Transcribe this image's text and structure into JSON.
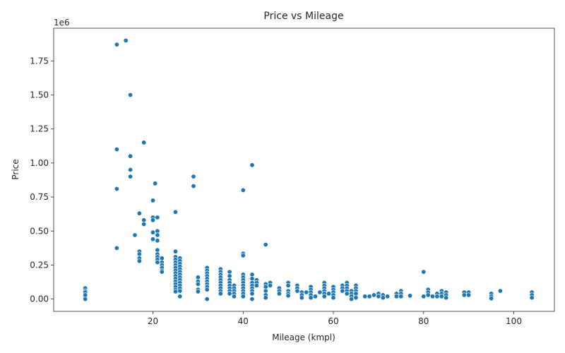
{
  "chart_data": {
    "type": "scatter",
    "title": "Price vs Mileage",
    "xlabel": "Mileage (kmpl)",
    "ylabel": "Price",
    "y_offset_text": "1e6",
    "xlim": [
      -2,
      109
    ],
    "ylim": [
      -90000,
      1990000
    ],
    "x_ticks": [
      20,
      40,
      60,
      80,
      100
    ],
    "x_tick_labels": [
      "20",
      "40",
      "60",
      "80",
      "100"
    ],
    "y_ticks": [
      0,
      250000,
      500000,
      750000,
      1000000,
      1250000,
      1500000,
      1750000
    ],
    "y_tick_labels": [
      "0.00",
      "0.25",
      "0.50",
      "0.75",
      "1.00",
      "1.25",
      "1.50",
      "1.75"
    ],
    "grid": false,
    "legend": "none",
    "point_color": "#1f77b4",
    "points": [
      [
        5,
        80000
      ],
      [
        5,
        60000
      ],
      [
        5,
        40000
      ],
      [
        5,
        25000
      ],
      [
        5,
        10000
      ],
      [
        5,
        0
      ],
      [
        5,
        50000
      ],
      [
        5,
        30000
      ],
      [
        12,
        1870000
      ],
      [
        14,
        1900000
      ],
      [
        15,
        1500000
      ],
      [
        12,
        1100000
      ],
      [
        15,
        1050000
      ],
      [
        18,
        1150000
      ],
      [
        15,
        950000
      ],
      [
        15,
        900000
      ],
      [
        20.5,
        850000
      ],
      [
        12,
        810000
      ],
      [
        20,
        725000
      ],
      [
        17,
        630000
      ],
      [
        18,
        580000
      ],
      [
        18,
        550000
      ],
      [
        20,
        600000
      ],
      [
        20,
        580000
      ],
      [
        21,
        600000
      ],
      [
        16,
        470000
      ],
      [
        12,
        375000
      ],
      [
        20,
        490000
      ],
      [
        21,
        500000
      ],
      [
        21,
        470000
      ],
      [
        20,
        440000
      ],
      [
        21,
        430000
      ],
      [
        17,
        350000
      ],
      [
        17,
        330000
      ],
      [
        17,
        300000
      ],
      [
        17,
        280000
      ],
      [
        21,
        360000
      ],
      [
        21,
        330000
      ],
      [
        21,
        310000
      ],
      [
        21,
        290000
      ],
      [
        21,
        270000
      ],
      [
        22,
        300000
      ],
      [
        22,
        270000
      ],
      [
        22,
        250000
      ],
      [
        22,
        230000
      ],
      [
        22,
        210000
      ],
      [
        22,
        200000
      ],
      [
        25,
        640000
      ],
      [
        25,
        350000
      ],
      [
        25,
        310000
      ],
      [
        25,
        290000
      ],
      [
        25,
        270000
      ],
      [
        25,
        250000
      ],
      [
        25,
        230000
      ],
      [
        25,
        210000
      ],
      [
        25,
        190000
      ],
      [
        25,
        170000
      ],
      [
        25,
        150000
      ],
      [
        25,
        130000
      ],
      [
        25,
        110000
      ],
      [
        25,
        90000
      ],
      [
        25,
        70000
      ],
      [
        25,
        55000
      ],
      [
        26,
        300000
      ],
      [
        26,
        280000
      ],
      [
        26,
        260000
      ],
      [
        26,
        240000
      ],
      [
        26,
        220000
      ],
      [
        26,
        200000
      ],
      [
        26,
        180000
      ],
      [
        26,
        160000
      ],
      [
        26,
        140000
      ],
      [
        26,
        120000
      ],
      [
        26,
        100000
      ],
      [
        26,
        80000
      ],
      [
        26,
        60000
      ],
      [
        26,
        20000
      ],
      [
        29,
        900000
      ],
      [
        29,
        830000
      ],
      [
        30,
        160000
      ],
      [
        30,
        130000
      ],
      [
        30,
        110000
      ],
      [
        30,
        70000
      ],
      [
        30,
        55000
      ],
      [
        32,
        230000
      ],
      [
        32,
        210000
      ],
      [
        32,
        190000
      ],
      [
        32,
        170000
      ],
      [
        32,
        150000
      ],
      [
        32,
        130000
      ],
      [
        32,
        110000
      ],
      [
        32,
        90000
      ],
      [
        32,
        70000
      ],
      [
        32,
        0
      ],
      [
        35,
        220000
      ],
      [
        35,
        200000
      ],
      [
        35,
        180000
      ],
      [
        35,
        160000
      ],
      [
        35,
        140000
      ],
      [
        35,
        120000
      ],
      [
        35,
        100000
      ],
      [
        35,
        80000
      ],
      [
        35,
        60000
      ],
      [
        35,
        40000
      ],
      [
        37,
        200000
      ],
      [
        37,
        170000
      ],
      [
        37,
        140000
      ],
      [
        37,
        120000
      ],
      [
        37,
        100000
      ],
      [
        37,
        80000
      ],
      [
        37,
        60000
      ],
      [
        37,
        40000
      ],
      [
        38,
        100000
      ],
      [
        38,
        80000
      ],
      [
        38,
        60000
      ],
      [
        38,
        40000
      ],
      [
        38,
        20000
      ],
      [
        40,
        800000
      ],
      [
        40,
        335000
      ],
      [
        40,
        320000
      ],
      [
        40,
        180000
      ],
      [
        40,
        160000
      ],
      [
        40,
        140000
      ],
      [
        40,
        120000
      ],
      [
        40,
        100000
      ],
      [
        40,
        80000
      ],
      [
        40,
        60000
      ],
      [
        40,
        40000
      ],
      [
        40,
        20000
      ],
      [
        42,
        985000
      ],
      [
        42,
        180000
      ],
      [
        42,
        150000
      ],
      [
        42,
        120000
      ],
      [
        42,
        100000
      ],
      [
        42,
        80000
      ],
      [
        42,
        60000
      ],
      [
        42,
        40000
      ],
      [
        42,
        0
      ],
      [
        43,
        140000
      ],
      [
        43,
        120000
      ],
      [
        43,
        100000
      ],
      [
        45,
        400000
      ],
      [
        45,
        110000
      ],
      [
        45,
        90000
      ],
      [
        45,
        60000
      ],
      [
        45,
        30000
      ],
      [
        45,
        10000
      ],
      [
        46,
        120000
      ],
      [
        46,
        100000
      ],
      [
        48,
        80000
      ],
      [
        48,
        60000
      ],
      [
        48,
        40000
      ],
      [
        50,
        120000
      ],
      [
        50,
        100000
      ],
      [
        50,
        60000
      ],
      [
        50,
        40000
      ],
      [
        50,
        25000
      ],
      [
        52,
        100000
      ],
      [
        52,
        80000
      ],
      [
        52,
        60000
      ],
      [
        53,
        50000
      ],
      [
        53,
        30000
      ],
      [
        53,
        10000
      ],
      [
        54,
        50000
      ],
      [
        55,
        90000
      ],
      [
        55,
        70000
      ],
      [
        55,
        50000
      ],
      [
        55,
        30000
      ],
      [
        55,
        10000
      ],
      [
        56,
        20000
      ],
      [
        57,
        50000
      ],
      [
        58,
        120000
      ],
      [
        58,
        100000
      ],
      [
        58,
        80000
      ],
      [
        58,
        60000
      ],
      [
        58,
        40000
      ],
      [
        58,
        20000
      ],
      [
        59,
        40000
      ],
      [
        60,
        90000
      ],
      [
        60,
        70000
      ],
      [
        60,
        50000
      ],
      [
        60,
        30000
      ],
      [
        60,
        10000
      ],
      [
        62,
        100000
      ],
      [
        62,
        80000
      ],
      [
        62,
        60000
      ],
      [
        63,
        120000
      ],
      [
        63,
        100000
      ],
      [
        63,
        80000
      ],
      [
        63,
        60000
      ],
      [
        63,
        40000
      ],
      [
        64,
        60000
      ],
      [
        64,
        40000
      ],
      [
        64,
        20000
      ],
      [
        64,
        0
      ],
      [
        65,
        100000
      ],
      [
        65,
        80000
      ],
      [
        65,
        60000
      ],
      [
        65,
        40000
      ],
      [
        65,
        10000
      ],
      [
        67,
        20000
      ],
      [
        68,
        20000
      ],
      [
        69,
        30000
      ],
      [
        70,
        40000
      ],
      [
        70,
        20000
      ],
      [
        71,
        30000
      ],
      [
        71,
        10000
      ],
      [
        72,
        20000
      ],
      [
        74,
        40000
      ],
      [
        74,
        20000
      ],
      [
        75,
        60000
      ],
      [
        75,
        40000
      ],
      [
        75,
        20000
      ],
      [
        77,
        25000
      ],
      [
        80,
        200000
      ],
      [
        80,
        20000
      ],
      [
        81,
        70000
      ],
      [
        81,
        50000
      ],
      [
        81,
        30000
      ],
      [
        82,
        20000
      ],
      [
        83,
        40000
      ],
      [
        83,
        20000
      ],
      [
        84,
        60000
      ],
      [
        84,
        40000
      ],
      [
        84,
        20000
      ],
      [
        85,
        50000
      ],
      [
        85,
        30000
      ],
      [
        85,
        10000
      ],
      [
        89,
        50000
      ],
      [
        89,
        30000
      ],
      [
        90,
        50000
      ],
      [
        90,
        30000
      ],
      [
        95,
        40000
      ],
      [
        95,
        20000
      ],
      [
        95,
        5000
      ],
      [
        97,
        60000
      ],
      [
        104,
        50000
      ],
      [
        104,
        30000
      ],
      [
        104,
        10000
      ]
    ]
  }
}
